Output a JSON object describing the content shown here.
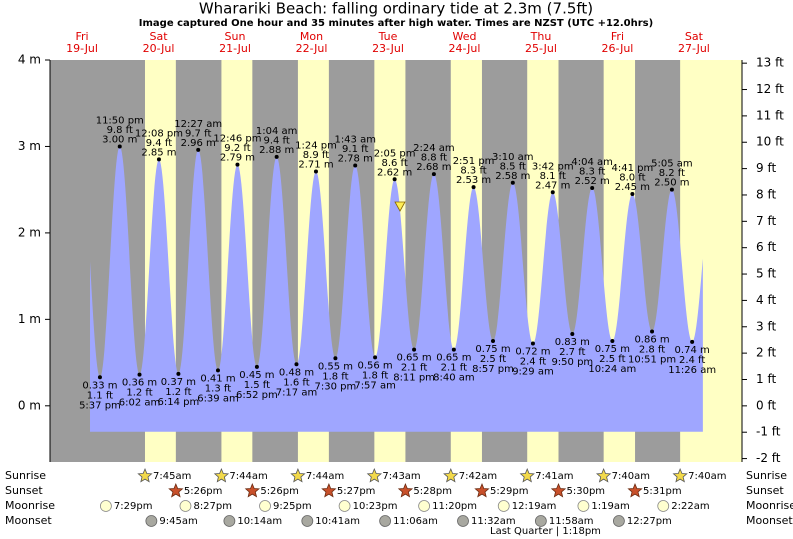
{
  "chart_data": {
    "type": "tide",
    "title": "Wharariki Beach: falling  ordinary tide at 2.3m (7.5ft)",
    "subtitle": "Image captured One hour and 35 minutes after high water. Times are NZST (UTC +12.0hrs)",
    "days": [
      "Fri",
      "Sat",
      "Sun",
      "Mon",
      "Tue",
      "Wed",
      "Thu",
      "Fri",
      "Sat"
    ],
    "dates": [
      "19-Jul",
      "20-Jul",
      "21-Jul",
      "22-Jul",
      "23-Jul",
      "24-Jul",
      "25-Jul",
      "26-Jul",
      "27-Jul"
    ],
    "ylim": [
      -0.65,
      4
    ],
    "yticks": [
      {
        "value": 0,
        "label": "0 m"
      },
      {
        "value": 1,
        "label": "1 m"
      },
      {
        "value": 2,
        "label": "2 m"
      },
      {
        "value": 3,
        "label": "3 m"
      },
      {
        "value": 4,
        "label": "4 m"
      }
    ],
    "y2lim": [
      -2.13,
      13.12
    ],
    "y2ticks": [
      {
        "value": -2,
        "label": "-2 ft"
      },
      {
        "value": -1,
        "label": "-1 ft"
      },
      {
        "value": 0,
        "label": "0 ft"
      },
      {
        "value": 1,
        "label": "1 ft"
      },
      {
        "value": 2,
        "label": "2 ft"
      },
      {
        "value": 3,
        "label": "3 ft"
      },
      {
        "value": 4,
        "label": "4 ft"
      },
      {
        "value": 5,
        "label": "5 ft"
      },
      {
        "value": 6,
        "label": "6 ft"
      },
      {
        "value": 7,
        "label": "7 ft"
      },
      {
        "value": 8,
        "label": "8 ft"
      },
      {
        "value": 9,
        "label": "9 ft"
      },
      {
        "value": 10,
        "label": "10 ft"
      },
      {
        "value": 11,
        "label": "11 ft"
      },
      {
        "value": 12,
        "label": "12 ft"
      },
      {
        "value": 13,
        "label": "13 ft"
      }
    ],
    "tide": {
      "color": "#9fa6ff",
      "dates": [
        "19-Jul",
        "19-Jul",
        "20-Jul",
        "20-Jul",
        "20-Jul",
        "21-Jul",
        "21-Jul",
        "21-Jul",
        "21-Jul",
        "22-Jul",
        "22-Jul",
        "22-Jul",
        "22-Jul",
        "23-Jul",
        "23-Jul",
        "23-Jul",
        "23-Jul",
        "24-Jul",
        "24-Jul",
        "24-Jul",
        "24-Jul",
        "25-Jul",
        "25-Jul",
        "25-Jul",
        "25-Jul",
        "26-Jul",
        "26-Jul",
        "26-Jul",
        "26-Jul",
        "27-Jul",
        "27-Jul"
      ],
      "times": [
        "5:37 pm",
        "11:50 pm",
        "6:02 am",
        "12:08 pm",
        "6:14 pm",
        "12:27 am",
        "6:39 am",
        "12:46 pm",
        "6:52 pm",
        "1:04 am",
        "7:17 am",
        "1:24 pm",
        "7:30 pm",
        "1:43 am",
        "7:57 am",
        "2:05 pm",
        "8:11 pm",
        "2:24 am",
        "8:40 am",
        "2:51 pm",
        "8:57 pm",
        "3:10 am",
        "9:29 am",
        "3:42 pm",
        "9:50 pm",
        "4:04 am",
        "10:24 am",
        "4:41 pm",
        "10:51 pm",
        "5:05 am",
        "11:26 am"
      ],
      "values": [
        0.33,
        3.0,
        0.36,
        2.85,
        0.37,
        2.96,
        0.41,
        2.79,
        0.45,
        2.88,
        0.48,
        2.71,
        0.55,
        2.78,
        0.56,
        2.62,
        0.65,
        2.68,
        0.65,
        2.53,
        0.75,
        2.58,
        0.72,
        2.47,
        0.83,
        2.52,
        0.75,
        2.45,
        0.86,
        2.5,
        0.74
      ],
      "value_labels": [
        "0.33 m",
        "3.00 m",
        "0.36 m",
        "2.85 m",
        "0.37 m",
        "2.96 m",
        "0.41 m",
        "2.79 m",
        "0.45 m",
        "2.88 m",
        "0.48 m",
        "2.71 m",
        "0.55 m",
        "2.78 m",
        "0.56 m",
        "2.62 m",
        "0.65 m",
        "2.68 m",
        "0.65 m",
        "2.53 m",
        "0.75 m",
        "2.58 m",
        "0.72 m",
        "2.47 m",
        "0.83 m",
        "2.52 m",
        "0.75 m",
        "2.45 m",
        "0.86 m",
        "2.50 m",
        "0.74 m"
      ],
      "ft_labels": [
        "1.1 ft",
        "9.8 ft",
        "1.2 ft",
        "9.4 ft",
        "1.2 ft",
        "9.7 ft",
        "1.3 ft",
        "9.2 ft",
        "1.5 ft",
        "9.4 ft",
        "1.6 ft",
        "8.9 ft",
        "1.8 ft",
        "9.1 ft",
        "1.8 ft",
        "8.6 ft",
        "2.1 ft",
        "8.8 ft",
        "2.1 ft",
        "8.3 ft",
        "2.5 ft",
        "8.5 ft",
        "2.4 ft",
        "8.1 ft",
        "2.7 ft",
        "8.3 ft",
        "2.5 ft",
        "8.0 ft",
        "2.8 ft",
        "8.2 ft",
        "2.4 ft"
      ]
    },
    "rows": [
      {
        "name": "Sunrise",
        "dates": [
          "20-Jul",
          "21-Jul",
          "22-Jul",
          "23-Jul",
          "24-Jul",
          "25-Jul",
          "26-Jul",
          "27-Jul"
        ],
        "times": [
          "7:45am",
          "7:44am",
          "7:44am",
          "7:43am",
          "7:42am",
          "7:41am",
          "7:40am",
          "7:40am"
        ]
      },
      {
        "name": "Sunset",
        "dates": [
          "20-Jul",
          "21-Jul",
          "22-Jul",
          "23-Jul",
          "24-Jul",
          "25-Jul",
          "26-Jul"
        ],
        "times": [
          "5:26pm",
          "5:26pm",
          "5:27pm",
          "5:28pm",
          "5:29pm",
          "5:30pm",
          "5:31pm"
        ]
      },
      {
        "name": "Moonrise",
        "dates": [
          "19-Jul",
          "20-Jul",
          "21-Jul",
          "22-Jul",
          "23-Jul",
          "25-Jul",
          "26-Jul",
          "27-Jul"
        ],
        "times": [
          "7:29pm",
          "8:27pm",
          "9:25pm",
          "10:23pm",
          "11:20pm",
          "12:19am",
          "1:19am",
          "2:22am"
        ]
      },
      {
        "name": "Moonset",
        "dates": [
          "20-Jul",
          "21-Jul",
          "22-Jul",
          "23-Jul",
          "24-Jul",
          "25-Jul",
          "26-Jul"
        ],
        "times": [
          "9:45am",
          "10:14am",
          "10:41am",
          "11:06am",
          "11:32am",
          "11:58am",
          "12:27pm"
        ]
      }
    ],
    "moon_phase": "Last Quarter | 1:18pm"
  }
}
